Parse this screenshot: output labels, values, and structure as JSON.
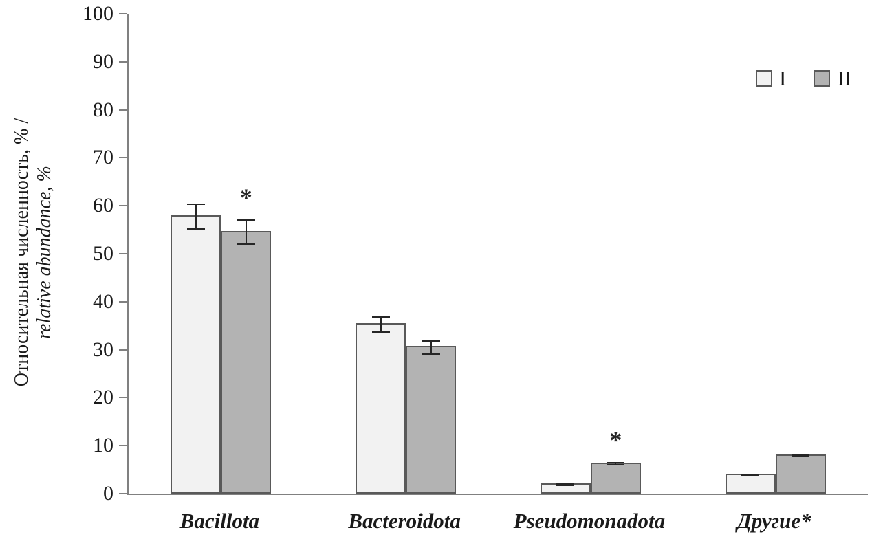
{
  "chart_data": {
    "type": "bar",
    "title": "",
    "ylabel_line1": "Относительная численность, % /",
    "ylabel_line2": "relative abundance, %",
    "xlabel": "",
    "ylim": [
      0,
      100
    ],
    "yticks": [
      0,
      10,
      20,
      30,
      40,
      50,
      60,
      70,
      80,
      90,
      100
    ],
    "grid": false,
    "legend_position": "top-right",
    "categories": [
      "Bacillota",
      "Bacteroidota",
      "Pseudomonadota",
      "Другие*"
    ],
    "series": [
      {
        "name": "I",
        "fill": "#f2f2f2",
        "border": "#595959",
        "values": [
          58.0,
          35.5,
          2.2,
          4.2
        ],
        "errors": [
          2.7,
          1.7,
          0.3,
          0.3
        ],
        "marks": [
          "",
          "",
          "",
          ""
        ]
      },
      {
        "name": "II",
        "fill": "#b3b3b3",
        "border": "#595959",
        "values": [
          54.8,
          30.8,
          6.5,
          8.2
        ],
        "errors": [
          2.6,
          1.5,
          0.4,
          0.2
        ],
        "marks": [
          "*",
          "",
          "*",
          ""
        ]
      }
    ],
    "annotations": [
      {
        "text": "*",
        "category": "Bacillota",
        "series": "II"
      },
      {
        "text": "*",
        "category": "Pseudomonadota",
        "series": "II"
      }
    ],
    "error_bar_color": "#262626",
    "axis_color": "#808080"
  }
}
